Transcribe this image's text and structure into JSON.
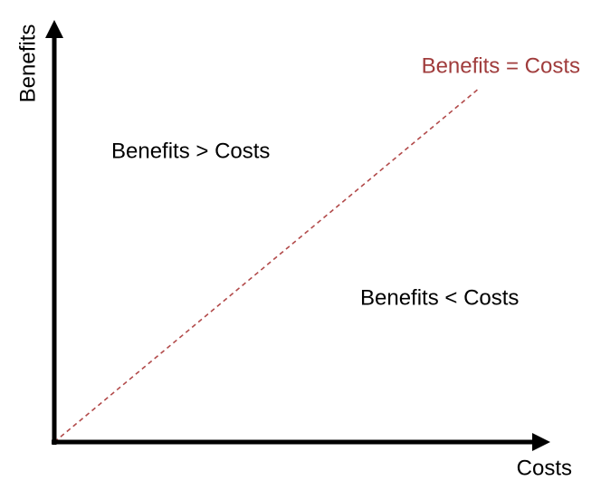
{
  "axes": {
    "y_label": "Benefits",
    "x_label": "Costs"
  },
  "line": {
    "label": "Benefits = Costs"
  },
  "regions": {
    "above": "Benefits > Costs",
    "below": "Benefits < Costs"
  }
}
